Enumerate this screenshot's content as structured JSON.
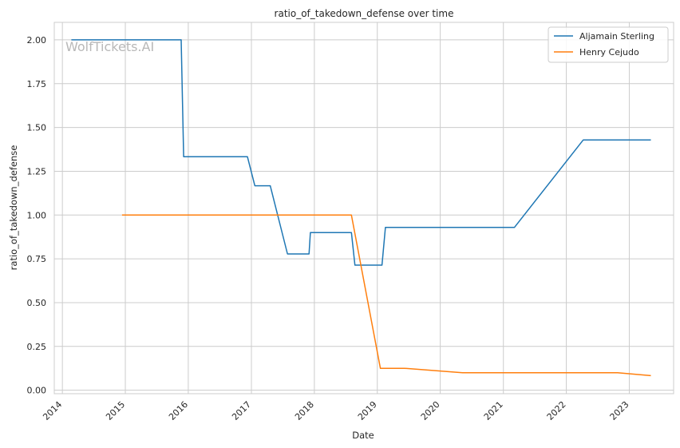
{
  "chart_data": {
    "type": "line",
    "title": "ratio_of_takedown_defense over time",
    "xlabel": "Date",
    "ylabel": "ratio_of_takedown_defense",
    "watermark": "WolfTickets.AI",
    "ylim": [
      -0.02,
      2.1
    ],
    "xlim": [
      "2013-11-15",
      "2023-09-15"
    ],
    "y_ticks": [
      "0.00",
      "0.25",
      "0.50",
      "0.75",
      "1.00",
      "1.25",
      "1.50",
      "1.75",
      "2.00"
    ],
    "x_ticks": [
      "2014",
      "2015",
      "2016",
      "2017",
      "2018",
      "2019",
      "2020",
      "2021",
      "2022",
      "2023"
    ],
    "grid": true,
    "legend_position": "top-right",
    "series": [
      {
        "name": "Aljamain Sterling",
        "color": "#1f77b4",
        "points": [
          [
            "2014-02-22",
            2.0
          ],
          [
            "2015-11-21",
            2.0
          ],
          [
            "2015-12-05",
            1.333
          ],
          [
            "2016-12-09",
            1.333
          ],
          [
            "2017-01-21",
            1.167
          ],
          [
            "2017-04-20",
            1.167
          ],
          [
            "2017-07-29",
            0.778
          ],
          [
            "2017-12-01",
            0.778
          ],
          [
            "2017-12-09",
            0.9
          ],
          [
            "2018-08-04",
            0.9
          ],
          [
            "2018-08-24",
            0.714
          ],
          [
            "2019-01-28",
            0.714
          ],
          [
            "2019-02-17",
            0.929
          ],
          [
            "2021-03-06",
            0.929
          ],
          [
            "2022-04-09",
            1.429
          ],
          [
            "2023-05-06",
            1.429
          ]
        ]
      },
      {
        "name": "Henry Cejudo",
        "color": "#ff7f0e",
        "points": [
          [
            "2014-12-13",
            1.0
          ],
          [
            "2018-08-04",
            1.0
          ],
          [
            "2019-01-19",
            0.125
          ],
          [
            "2019-06-08",
            0.125
          ],
          [
            "2020-05-09",
            0.1
          ],
          [
            "2022-10-25",
            0.1
          ],
          [
            "2023-05-06",
            0.083
          ]
        ]
      }
    ]
  }
}
